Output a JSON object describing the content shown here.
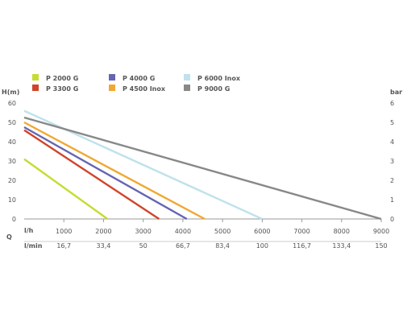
{
  "chart_data": {
    "type": "line",
    "y_left_label": "H(m)",
    "y_right_label": "bar",
    "x_units_label": "l/h",
    "x_row_label": "Q",
    "x2_units_label": "l/min",
    "xlim": [
      0,
      9000
    ],
    "ylim_left": [
      0,
      60
    ],
    "ylim_right": [
      0,
      6
    ],
    "grid": false,
    "legend_position": "top",
    "y_left_ticks": [
      "0",
      "10",
      "20",
      "30",
      "40",
      "50",
      "60"
    ],
    "y_right_ticks": [
      "0",
      "1",
      "2",
      "3",
      "4",
      "5",
      "6"
    ],
    "x_ticks": [
      {
        "value": 1000,
        "lh": "1000",
        "lmin": "16,7"
      },
      {
        "value": 2000,
        "lh": "2000",
        "lmin": "33,4"
      },
      {
        "value": 3000,
        "lh": "3000",
        "lmin": "50"
      },
      {
        "value": 4000,
        "lh": "4000",
        "lmin": "66,7"
      },
      {
        "value": 5000,
        "lh": "5000",
        "lmin": "83,4"
      },
      {
        "value": 6000,
        "lh": "6000",
        "lmin": "100"
      },
      {
        "value": 7000,
        "lh": "7000",
        "lmin": "116,7"
      },
      {
        "value": 8000,
        "lh": "8000",
        "lmin": "133,4"
      },
      {
        "value": 9000,
        "lh": "9000",
        "lmin": "150"
      }
    ],
    "series": [
      {
        "name": "P 2000 G",
        "color": "#c5dc32",
        "points": [
          [
            0,
            31
          ],
          [
            2100,
            0
          ]
        ]
      },
      {
        "name": "P 3300 G",
        "color": "#d0452a",
        "points": [
          [
            0,
            46
          ],
          [
            3400,
            0
          ]
        ]
      },
      {
        "name": "P 4000 G",
        "color": "#6565b2",
        "points": [
          [
            0,
            47.5
          ],
          [
            4100,
            0
          ]
        ]
      },
      {
        "name": "P 4500 Inox",
        "color": "#f0a832",
        "points": [
          [
            0,
            50
          ],
          [
            4550,
            0
          ]
        ]
      },
      {
        "name": "P 6000 Inox",
        "color": "#bfe2ec",
        "points": [
          [
            0,
            56
          ],
          [
            6000,
            0
          ]
        ]
      },
      {
        "name": "P 9000 G",
        "color": "#888888",
        "points": [
          [
            0,
            52.5
          ],
          [
            9000,
            0
          ]
        ]
      }
    ]
  }
}
